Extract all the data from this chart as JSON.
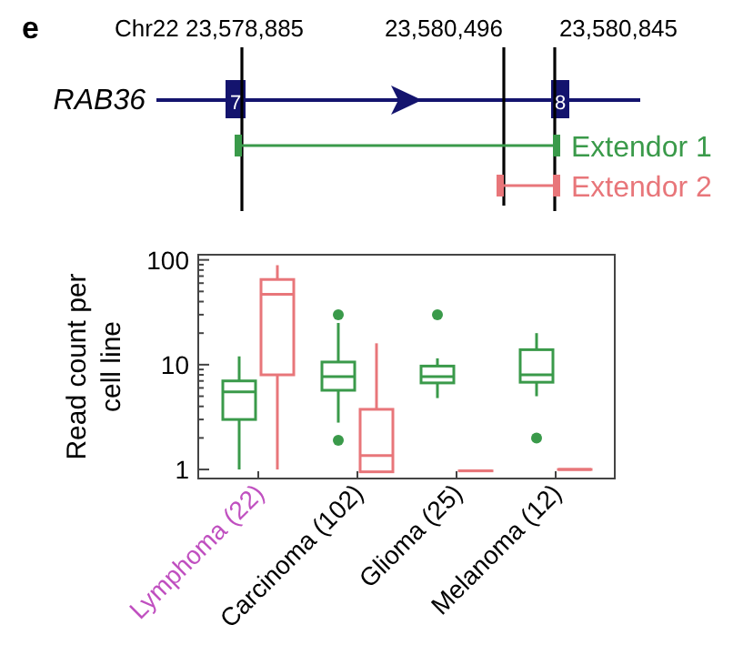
{
  "chart_data": {
    "type": "box",
    "ylabel": "Read count per cell line",
    "categories": [
      "Lymphoma (22)",
      "Carcinoma (102)",
      "Glioma (25)",
      "Melanoma (12)"
    ],
    "log": "y",
    "ylim": [
      0.82,
      112
    ],
    "yticks": [
      1,
      {
        "value": 2,
        "label": null
      },
      {
        "value": 3,
        "label": null
      },
      {
        "value": 4,
        "label": null
      },
      {
        "value": 5,
        "label": null
      },
      {
        "value": 6,
        "label": null
      },
      {
        "value": 7,
        "label": null
      },
      {
        "value": 8,
        "label": null
      },
      {
        "value": 9,
        "label": null
      },
      10,
      {
        "value": 20,
        "label": null
      },
      {
        "value": 30,
        "label": null
      },
      {
        "value": 40,
        "label": null
      },
      {
        "value": 50,
        "label": null
      },
      {
        "value": 60,
        "label": null
      },
      {
        "value": 70,
        "label": null
      },
      {
        "value": 80,
        "label": null
      },
      {
        "value": 90,
        "label": null
      },
      100
    ],
    "grid": false,
    "legend": "top",
    "series": [
      {
        "name": "Extendor 1",
        "color": "#3a9a4a",
        "boxes": [
          {
            "low": 1,
            "q1": 3,
            "median": 5.5,
            "q3": 7,
            "high": 12
          },
          {
            "low": 2.8,
            "q1": 5.7,
            "median": 7.7,
            "q3": 10.6,
            "high": 25,
            "outliers": [
              30,
              1.9
            ]
          },
          {
            "low": 4.8,
            "q1": 6.7,
            "median": 7.7,
            "q3": 9.7,
            "high": 11.5,
            "outliers": [
              30
            ]
          },
          {
            "low": 5,
            "q1": 6.8,
            "median": 8,
            "q3": 13.9,
            "high": 20,
            "outliers": [
              2
            ]
          }
        ]
      },
      {
        "name": "Extendor 2",
        "color": "#e8767a",
        "boxes": [
          {
            "low": 1,
            "q1": 8,
            "median": 47,
            "q3": 65,
            "high": 89
          },
          {
            "low": 0.95,
            "q1": 0.95,
            "median": 1.36,
            "q3": 3.75,
            "high": 16
          },
          {
            "low": 0.97,
            "q1": 0.97,
            "median": 0.97,
            "q3": 0.97,
            "high": 0.97
          },
          {
            "low": 1,
            "q1": 1,
            "median": 1,
            "q3": 1,
            "high": 1
          }
        ]
      }
    ],
    "annotations": [
      "e",
      "Chr22 23,578,885",
      "23,580,496",
      "23,580,845",
      "RAB36",
      "7",
      "8"
    ]
  }
}
